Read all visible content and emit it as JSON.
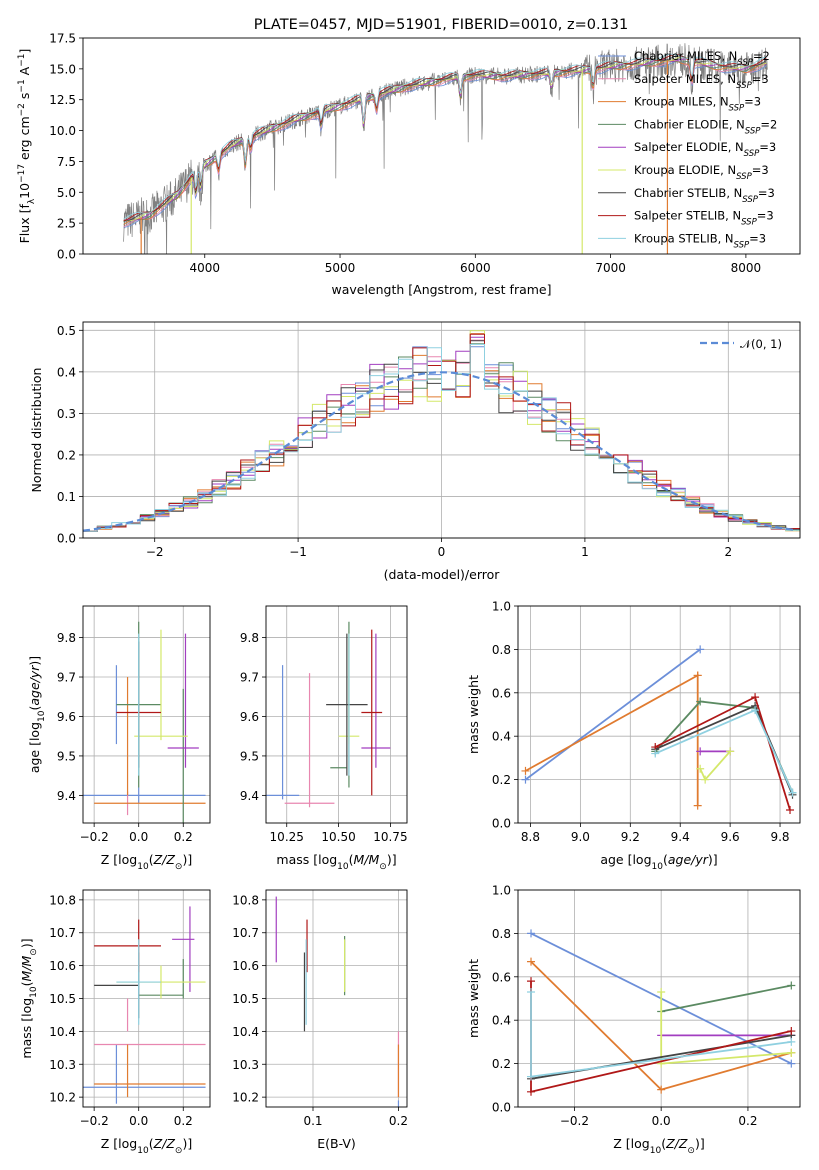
{
  "title": "PLATE=0457, MJD=51901, FIBERID=0010, z=0.131",
  "series_styles": [
    {
      "name": "Chabrier MILES, N_SSP=2",
      "label": "Chabrier MILES, N",
      "sub": "SSP",
      "tail": "=2",
      "color": "#6c8fd9"
    },
    {
      "name": "Salpeter MILES, N_SSP=3",
      "label": "Salpeter MILES, N",
      "sub": "SSP",
      "tail": "=3",
      "color": "#e887b0"
    },
    {
      "name": "Kroupa MILES, N_SSP=3",
      "label": "Kroupa MILES, N",
      "sub": "SSP",
      "tail": "=3",
      "color": "#e07b30"
    },
    {
      "name": "Chabrier ELODIE, N_SSP=2",
      "label": "Chabrier ELODIE, N",
      "sub": "SSP",
      "tail": "=2",
      "color": "#5b8a62"
    },
    {
      "name": "Salpeter ELODIE, N_SSP=3",
      "label": "Salpeter ELODIE, N",
      "sub": "SSP",
      "tail": "=3",
      "color": "#a23ec0"
    },
    {
      "name": "Kroupa ELODIE, N_SSP=3",
      "label": "Kroupa ELODIE, N",
      "sub": "SSP",
      "tail": "=3",
      "color": "#d4e86a"
    },
    {
      "name": "Chabrier STELIB, N_SSP=3",
      "label": "Chabrier STELIB, N",
      "sub": "SSP",
      "tail": "=3",
      "color": "#444444"
    },
    {
      "name": "Salpeter STELIB, N_SSP=3",
      "label": "Salpeter STELIB, N",
      "sub": "SSP",
      "tail": "=3",
      "color": "#b01818"
    },
    {
      "name": "Kroupa STELIB, N_SSP=3",
      "label": "Kroupa STELIB, N",
      "sub": "SSP",
      "tail": "=3",
      "color": "#8fd0e0"
    }
  ],
  "chart_data": [
    {
      "id": "spectrum",
      "type": "line",
      "xlabel": "wavelength [Angstrom, rest frame]",
      "ylabel": "Flux [f",
      "ylabel_parts": [
        "Flux [f",
        "λ",
        "10",
        "−17",
        " erg cm",
        "−2",
        " s",
        "−1",
        " A",
        "−1",
        "]"
      ],
      "xlim": [
        3100,
        8400
      ],
      "ylim": [
        0,
        17.5
      ],
      "xticks": [
        4000,
        5000,
        6000,
        7000,
        8000
      ],
      "yticks": [
        0.0,
        2.5,
        5.0,
        7.5,
        10.0,
        12.5,
        15.0,
        17.5
      ],
      "observed_color": "#808080",
      "continuum": {
        "x": [
          3400,
          3600,
          3800,
          3900,
          4000,
          4100,
          4200,
          4300,
          4500,
          4700,
          5000,
          5200,
          5500,
          5800,
          6000,
          6200,
          6500,
          6800,
          7000,
          7200,
          7500,
          7800,
          8000,
          8150
        ],
        "y": [
          2.6,
          3.2,
          4.8,
          6.2,
          7.2,
          8.0,
          8.8,
          9.3,
          10.2,
          11.0,
          12.0,
          12.7,
          13.6,
          14.2,
          14.5,
          14.4,
          14.6,
          14.9,
          15.2,
          15.4,
          15.8,
          15.2,
          15.0,
          15.5
        ]
      },
      "drops": [
        {
          "x": 3530,
          "color": "#e07b30"
        },
        {
          "x": 3900,
          "color": "#d4e86a"
        },
        {
          "x": 6790,
          "color": "#d4e86a"
        },
        {
          "x": 7420,
          "color": "#e07b30"
        }
      ],
      "legend_loc": "right"
    },
    {
      "id": "residuals",
      "type": "histogram",
      "xlabel": "(data-model)/error",
      "ylabel": "Normed distribution",
      "xlim": [
        -2.5,
        2.5
      ],
      "ylim": [
        0,
        0.52
      ],
      "xticks": [
        -2,
        -1,
        0,
        1,
        2
      ],
      "yticks": [
        0.0,
        0.1,
        0.2,
        0.3,
        0.4,
        0.5
      ],
      "bin_width": 0.1,
      "reference": {
        "label": "𝒩(0, 1)",
        "mean": 0,
        "sigma": 1,
        "color": "#5b8bd6"
      },
      "grid": true,
      "legend_loc": "top-right"
    },
    {
      "id": "age_vs_Z",
      "type": "errorbar",
      "xlabel": "Z [log10(Z/Z⊙)]",
      "ylabel": "age [log10(age/yr)]",
      "xlim": [
        -0.25,
        0.32
      ],
      "ylim": [
        9.33,
        9.88
      ],
      "xticks": [
        -0.2,
        0.0,
        0.2
      ],
      "yticks": [
        9.4,
        9.5,
        9.6,
        9.7,
        9.8
      ],
      "points": [
        {
          "s": 0,
          "x": 0.0,
          "y": 9.4,
          "xe": 0.3,
          "ye": 0.02
        },
        {
          "s": 0,
          "x": -0.1,
          "y": 9.63,
          "xe": 0.0,
          "ye": 0.1
        },
        {
          "s": 1,
          "x": -0.05,
          "y": 9.38,
          "xe": 0.0,
          "ye": 0.03
        },
        {
          "s": 2,
          "x": 0.05,
          "y": 9.38,
          "xe": 0.25,
          "ye": 0.0
        },
        {
          "s": 2,
          "x": -0.05,
          "y": 9.55,
          "xe": 0.0,
          "ye": 0.15
        },
        {
          "s": 3,
          "x": 0.0,
          "y": 9.63,
          "xe": 0.1,
          "ye": 0.21
        },
        {
          "s": 3,
          "x": 0.2,
          "y": 9.47,
          "xe": 0.0,
          "ye": 0.2
        },
        {
          "s": 4,
          "x": 0.2,
          "y": 9.52,
          "xe": 0.07,
          "ye": 0.0
        },
        {
          "s": 4,
          "x": 0.21,
          "y": 9.64,
          "xe": 0.0,
          "ye": 0.17
        },
        {
          "s": 5,
          "x": 0.1,
          "y": 9.55,
          "xe": 0.12,
          "ye": 0.0
        },
        {
          "s": 5,
          "x": 0.1,
          "y": 9.68,
          "xe": 0.0,
          "ye": 0.14
        },
        {
          "s": 6,
          "x": 0.0,
          "y": 9.63,
          "xe": 0.0,
          "ye": 0.16
        },
        {
          "s": 6,
          "x": -0.1,
          "y": 9.63,
          "xe": 0.0,
          "ye": 0.0
        },
        {
          "s": 7,
          "x": 0.0,
          "y": 9.61,
          "xe": 0.1,
          "ye": 0.0
        },
        {
          "s": 8,
          "x": 0.0,
          "y": 9.63,
          "xe": 0.0,
          "ye": 0.18
        }
      ]
    },
    {
      "id": "age_vs_mass",
      "type": "errorbar",
      "xlabel": "mass [log10(M/M⊙)]",
      "ylabel": "",
      "xlim": [
        10.15,
        10.83
      ],
      "ylim": [
        9.33,
        9.88
      ],
      "xticks": [
        10.25,
        10.5,
        10.75
      ],
      "yticks": [
        9.4,
        9.5,
        9.6,
        9.7,
        9.8
      ],
      "points": [
        {
          "s": 0,
          "x": 10.23,
          "y": 9.4,
          "xe": 0.08,
          "ye": 0.0
        },
        {
          "s": 0,
          "x": 10.23,
          "y": 9.56,
          "xe": 0.0,
          "ye": 0.17
        },
        {
          "s": 1,
          "x": 10.36,
          "y": 9.38,
          "xe": 0.12,
          "ye": 0.0
        },
        {
          "s": 1,
          "x": 10.36,
          "y": 9.54,
          "xe": 0.0,
          "ye": 0.17
        },
        {
          "s": 2,
          "x": 10.24,
          "y": 9.38,
          "xe": 0.0,
          "ye": 0.0
        },
        {
          "s": 3,
          "x": 10.55,
          "y": 9.63,
          "xe": 0.0,
          "ye": 0.21
        },
        {
          "s": 3,
          "x": 10.5,
          "y": 9.47,
          "xe": 0.04,
          "ye": 0.0
        },
        {
          "s": 4,
          "x": 10.68,
          "y": 9.52,
          "xe": 0.07,
          "ye": 0.0
        },
        {
          "s": 4,
          "x": 10.68,
          "y": 9.64,
          "xe": 0.0,
          "ye": 0.17
        },
        {
          "s": 5,
          "x": 10.55,
          "y": 9.55,
          "xe": 0.05,
          "ye": 0.0
        },
        {
          "s": 5,
          "x": 10.55,
          "y": 9.67,
          "xe": 0.0,
          "ye": 0.14
        },
        {
          "s": 6,
          "x": 10.54,
          "y": 9.63,
          "xe": 0.1,
          "ye": 0.18
        },
        {
          "s": 7,
          "x": 10.66,
          "y": 9.61,
          "xe": 0.05,
          "ye": 0.21
        },
        {
          "s": 8,
          "x": 10.55,
          "y": 9.63,
          "xe": 0.0,
          "ye": 0.18
        }
      ]
    },
    {
      "id": "mw_vs_age",
      "type": "line",
      "xlabel": "age [log10(age/yr)]",
      "ylabel": "mass weight",
      "xlim": [
        8.75,
        9.88
      ],
      "ylim": [
        0,
        1
      ],
      "xticks": [
        8.8,
        9.0,
        9.2,
        9.4,
        9.6,
        9.8
      ],
      "yticks": [
        0.0,
        0.2,
        0.4,
        0.6,
        0.8,
        1.0
      ],
      "series": [
        {
          "s": 0,
          "x": [
            8.78,
            9.48
          ],
          "y": [
            0.2,
            0.8
          ]
        },
        {
          "s": 2,
          "x": [
            8.78,
            9.47,
            9.47,
            9.47
          ],
          "y": [
            0.24,
            0.68,
            0.68,
            0.08
          ]
        },
        {
          "s": 3,
          "x": [
            9.3,
            9.48,
            9.7,
            9.85
          ],
          "y": [
            0.33,
            0.56,
            0.53,
            0.14
          ]
        },
        {
          "s": 4,
          "x": [
            9.48,
            9.6
          ],
          "y": [
            0.33,
            0.33
          ]
        },
        {
          "s": 5,
          "x": [
            9.48,
            9.5,
            9.6
          ],
          "y": [
            0.25,
            0.2,
            0.33
          ]
        },
        {
          "s": 6,
          "x": [
            9.3,
            9.7,
            9.85
          ],
          "y": [
            0.34,
            0.54,
            0.13
          ]
        },
        {
          "s": 7,
          "x": [
            9.3,
            9.7,
            9.84
          ],
          "y": [
            0.35,
            0.58,
            0.06
          ]
        },
        {
          "s": 8,
          "x": [
            9.3,
            9.7,
            9.85
          ],
          "y": [
            0.32,
            0.52,
            0.14
          ]
        }
      ],
      "grid": true
    },
    {
      "id": "mass_vs_Z",
      "type": "errorbar",
      "xlabel": "Z [log10(Z/Z⊙)]",
      "ylabel": "mass [log10(M/M⊙)]",
      "xlim": [
        -0.25,
        0.32
      ],
      "ylim": [
        10.17,
        10.83
      ],
      "xticks": [
        -0.2,
        0.0,
        0.2
      ],
      "yticks": [
        10.2,
        10.3,
        10.4,
        10.5,
        10.6,
        10.7,
        10.8
      ],
      "points": [
        {
          "s": 0,
          "x": 0.0,
          "y": 10.23,
          "xe": 0.3,
          "ye": 0.0
        },
        {
          "s": 0,
          "x": -0.1,
          "y": 10.27,
          "xe": 0.0,
          "ye": 0.09
        },
        {
          "s": 1,
          "x": 0.05,
          "y": 10.36,
          "xe": 0.25,
          "ye": 0.0
        },
        {
          "s": 1,
          "x": -0.05,
          "y": 10.45,
          "xe": 0.0,
          "ye": 0.05
        },
        {
          "s": 2,
          "x": 0.05,
          "y": 10.24,
          "xe": 0.25,
          "ye": 0.0
        },
        {
          "s": 2,
          "x": -0.05,
          "y": 10.28,
          "xe": 0.0,
          "ye": 0.08
        },
        {
          "s": 3,
          "x": 0.1,
          "y": 10.51,
          "xe": 0.1,
          "ye": 0.0
        },
        {
          "s": 3,
          "x": 0.2,
          "y": 10.56,
          "xe": 0.0,
          "ye": 0.06
        },
        {
          "s": 4,
          "x": 0.2,
          "y": 10.68,
          "xe": 0.05,
          "ye": 0.0
        },
        {
          "s": 4,
          "x": 0.23,
          "y": 10.65,
          "xe": 0.0,
          "ye": 0.13
        },
        {
          "s": 5,
          "x": 0.1,
          "y": 10.55,
          "xe": 0.2,
          "ye": 0.0
        },
        {
          "s": 5,
          "x": 0.1,
          "y": 10.55,
          "xe": 0.0,
          "ye": 0.05
        },
        {
          "s": 6,
          "x": -0.1,
          "y": 10.54,
          "xe": 0.1,
          "ye": 0.0
        },
        {
          "s": 6,
          "x": 0.0,
          "y": 10.54,
          "xe": 0.0,
          "ye": 0.1
        },
        {
          "s": 7,
          "x": -0.05,
          "y": 10.66,
          "xe": 0.15,
          "ye": 0.0
        },
        {
          "s": 7,
          "x": 0.0,
          "y": 10.66,
          "xe": 0.0,
          "ye": 0.08
        },
        {
          "s": 8,
          "x": 0.0,
          "y": 10.55,
          "xe": 0.1,
          "ye": 0.13
        }
      ]
    },
    {
      "id": "mass_vs_ebv",
      "type": "errorbar",
      "xlabel": "E(B-V)",
      "ylabel": "",
      "xlim": [
        0.045,
        0.21
      ],
      "ylim": [
        10.17,
        10.83
      ],
      "xticks": [
        0.1,
        0.2
      ],
      "yticks": [
        10.2,
        10.3,
        10.4,
        10.5,
        10.6,
        10.7,
        10.8
      ],
      "points": [
        {
          "s": 0,
          "x": 0.2,
          "y": 10.18,
          "xe": 0.0,
          "ye": 0.01
        },
        {
          "s": 1,
          "x": 0.2,
          "y": 10.3,
          "xe": 0.0,
          "ye": 0.1
        },
        {
          "s": 2,
          "x": 0.2,
          "y": 10.28,
          "xe": 0.0,
          "ye": 0.08
        },
        {
          "s": 3,
          "x": 0.137,
          "y": 10.6,
          "xe": 0.0,
          "ye": 0.09
        },
        {
          "s": 4,
          "x": 0.057,
          "y": 10.71,
          "xe": 0.0,
          "ye": 0.1
        },
        {
          "s": 5,
          "x": 0.137,
          "y": 10.6,
          "xe": 0.0,
          "ye": 0.08
        },
        {
          "s": 6,
          "x": 0.09,
          "y": 10.52,
          "xe": 0.0,
          "ye": 0.12
        },
        {
          "s": 7,
          "x": 0.093,
          "y": 10.66,
          "xe": 0.0,
          "ye": 0.08
        },
        {
          "s": 8,
          "x": 0.092,
          "y": 10.55,
          "xe": 0.0,
          "ye": 0.13
        }
      ]
    },
    {
      "id": "mw_vs_Z",
      "type": "line",
      "xlabel": "Z [log10(Z/Z⊙)]",
      "ylabel": "mass weight",
      "xlim": [
        -0.33,
        0.32
      ],
      "ylim": [
        0,
        1
      ],
      "xticks": [
        -0.2,
        0.0,
        0.2
      ],
      "yticks": [
        0.0,
        0.2,
        0.4,
        0.6,
        0.8,
        1.0
      ],
      "series": [
        {
          "s": 0,
          "x": [
            -0.3,
            0.3
          ],
          "y": [
            0.8,
            0.2
          ]
        },
        {
          "s": 2,
          "x": [
            -0.3,
            0.0,
            0.3
          ],
          "y": [
            0.67,
            0.08,
            0.25
          ]
        },
        {
          "s": 3,
          "x": [
            0.0,
            0.3
          ],
          "y": [
            0.44,
            0.56
          ]
        },
        {
          "s": 4,
          "x": [
            0.0,
            0.3
          ],
          "y": [
            0.33,
            0.33
          ]
        },
        {
          "s": 5,
          "x": [
            0.0,
            0.0,
            0.3
          ],
          "y": [
            0.53,
            0.2,
            0.25
          ]
        },
        {
          "s": 6,
          "x": [
            -0.3,
            0.3
          ],
          "y": [
            0.13,
            0.33
          ]
        },
        {
          "s": 7,
          "x": [
            -0.3,
            -0.3,
            0.3
          ],
          "y": [
            0.58,
            0.07,
            0.35
          ]
        },
        {
          "s": 8,
          "x": [
            -0.3,
            -0.3,
            0.3
          ],
          "y": [
            0.53,
            0.14,
            0.3
          ]
        }
      ],
      "grid": true
    }
  ]
}
